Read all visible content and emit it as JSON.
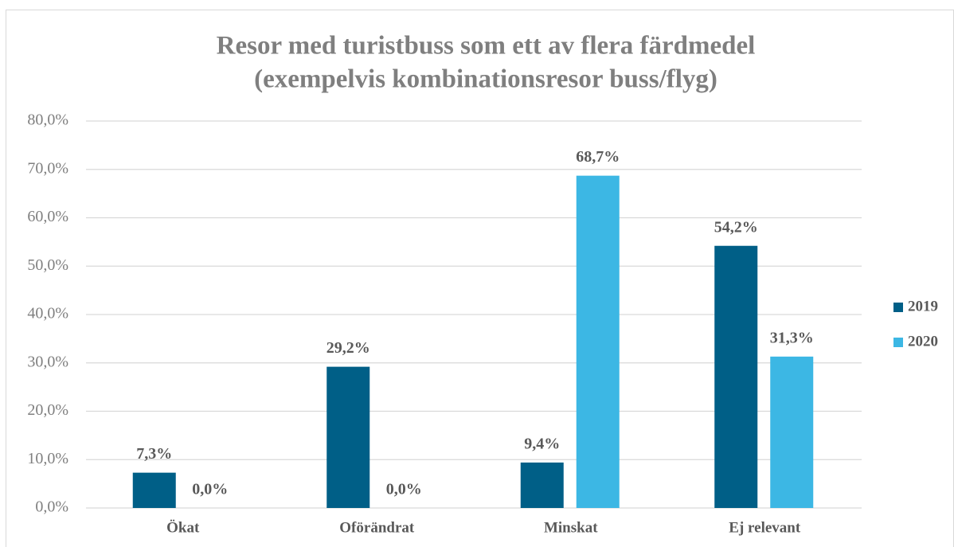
{
  "chart_data": {
    "type": "bar",
    "title": [
      "Resor med turistbuss som ett av flera färdmedel",
      "(exempelvis kombinationsresor buss/flyg)"
    ],
    "categories": [
      "Ökat",
      "Oförändrat",
      "Minskat",
      "Ej relevant"
    ],
    "series": [
      {
        "name": "2019",
        "color": "#005f87",
        "values": [
          7.3,
          29.2,
          9.4,
          54.2
        ],
        "value_labels": [
          "7,3%",
          "29,2%",
          "9,4%",
          "54,2%"
        ]
      },
      {
        "name": "2020",
        "color": "#3cb7e4",
        "values": [
          0.0,
          0.0,
          68.7,
          31.3
        ],
        "value_labels": [
          "0,0%",
          "0,0%",
          "68,7%",
          "31,3%"
        ]
      }
    ],
    "ylim": [
      0,
      80
    ],
    "yticks": [
      {
        "value": 0,
        "label": "0,0%"
      },
      {
        "value": 10,
        "label": "10,0%"
      },
      {
        "value": 20,
        "label": "20,0%"
      },
      {
        "value": 30,
        "label": "30,0%"
      },
      {
        "value": 40,
        "label": "40,0%"
      },
      {
        "value": 50,
        "label": "50,0%"
      },
      {
        "value": 60,
        "label": "60,0%"
      },
      {
        "value": 70,
        "label": "70,0%"
      },
      {
        "value": 80,
        "label": "80,0%"
      }
    ],
    "grid": true,
    "legend": "right"
  }
}
